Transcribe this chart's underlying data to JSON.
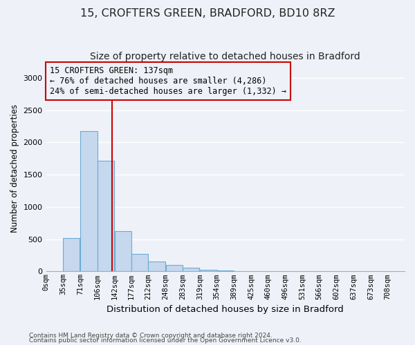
{
  "title1": "15, CROFTERS GREEN, BRADFORD, BD10 8RZ",
  "title2": "Size of property relative to detached houses in Bradford",
  "xlabel": "Distribution of detached houses by size in Bradford",
  "ylabel": "Number of detached properties",
  "bin_labels": [
    "0sqm",
    "35sqm",
    "71sqm",
    "106sqm",
    "142sqm",
    "177sqm",
    "212sqm",
    "248sqm",
    "283sqm",
    "319sqm",
    "354sqm",
    "389sqm",
    "425sqm",
    "460sqm",
    "496sqm",
    "531sqm",
    "566sqm",
    "602sqm",
    "637sqm",
    "673sqm",
    "708sqm"
  ],
  "bin_edges": [
    0,
    35,
    71,
    106,
    142,
    177,
    212,
    248,
    283,
    319,
    354,
    389,
    425,
    460,
    496,
    531,
    566,
    602,
    637,
    673,
    708
  ],
  "bar_values": [
    5,
    520,
    2175,
    1720,
    625,
    270,
    150,
    100,
    55,
    30,
    15,
    8,
    5,
    3,
    2,
    1,
    1,
    0,
    0,
    0
  ],
  "bar_color": "#c5d8ee",
  "bar_edgecolor": "#6aaad4",
  "property_sqm": 137,
  "vline_color": "#cc0000",
  "annotation_line1": "15 CROFTERS GREEN: 137sqm",
  "annotation_line2": "← 76% of detached houses are smaller (4,286)",
  "annotation_line3": "24% of semi-detached houses are larger (1,332) →",
  "annotation_box_edgecolor": "#cc0000",
  "ylim": [
    0,
    3200
  ],
  "yticks": [
    0,
    500,
    1000,
    1500,
    2000,
    2500,
    3000
  ],
  "footnote1": "Contains HM Land Registry data © Crown copyright and database right 2024.",
  "footnote2": "Contains public sector information licensed under the Open Government Licence v3.0.",
  "background_color": "#eef2f8",
  "grid_color": "#ffffff",
  "title1_fontsize": 11.5,
  "title2_fontsize": 10,
  "ylabel_fontsize": 8.5,
  "xlabel_fontsize": 9.5,
  "tick_fontsize": 7.5,
  "annot_fontsize": 8.5
}
